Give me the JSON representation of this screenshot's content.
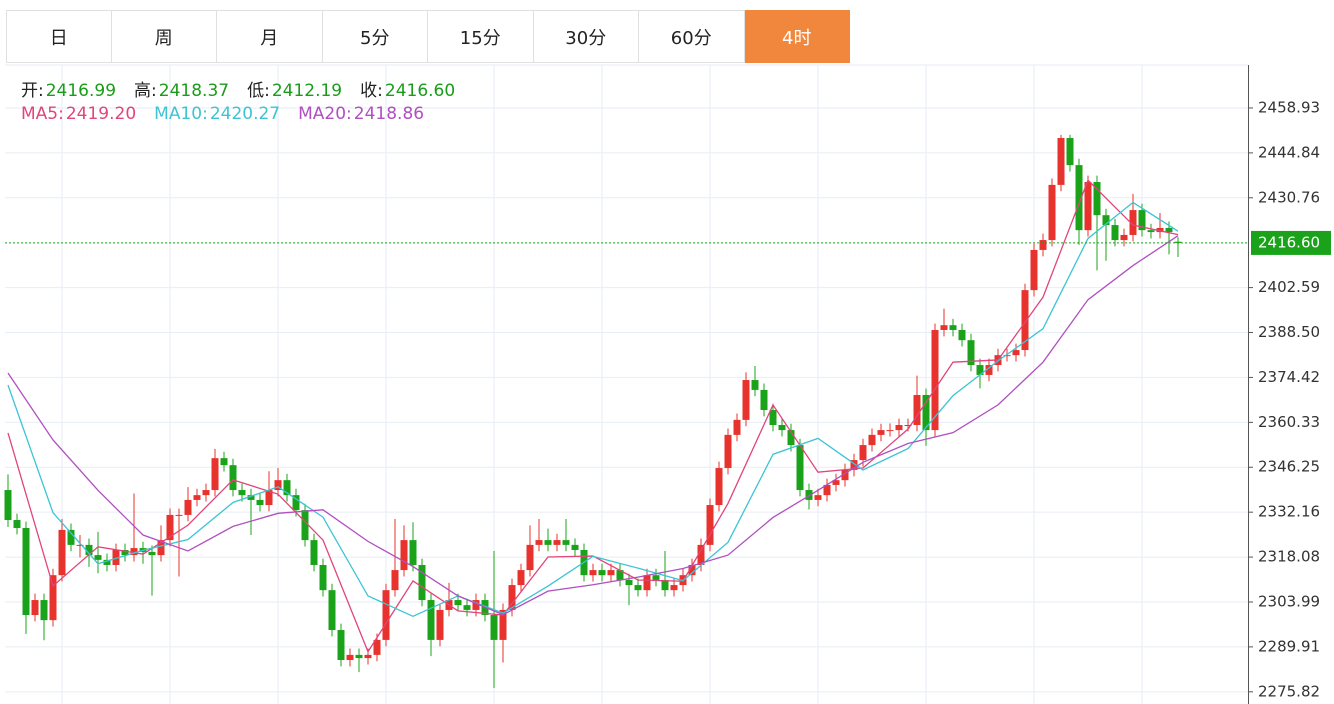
{
  "tabs": {
    "items": [
      "日",
      "周",
      "月",
      "5分",
      "15分",
      "30分",
      "60分",
      "4时"
    ],
    "active": 7
  },
  "quote": {
    "labels": [
      "开:",
      "高:",
      "低:",
      "收:"
    ],
    "values": [
      2416.99,
      2418.37,
      2412.19,
      2416.6
    ],
    "value_labels": [
      "2416.99",
      "2418.37",
      "2412.19",
      "2416.60"
    ],
    "color": "#1a9c1a"
  },
  "chart_data": {
    "type": "candlestick",
    "up_color": "#e8322d",
    "down_color": "#1aa31a",
    "grid": true,
    "ylim": [
      2272.0,
      2472.4
    ],
    "yticks": [
      2458.93,
      2444.84,
      2430.76,
      2402.59,
      {
        "value": 2388.5,
        "label": "2388.50"
      },
      2374.42,
      2360.33,
      2346.25,
      2332.16,
      2318.08,
      2303.99,
      2289.91,
      2275.82
    ],
    "last_price": {
      "value": 2416.6,
      "label": "2416.60",
      "color": "#1aa31a"
    },
    "open": [
      2339.1,
      2329.7,
      2327.2,
      2299.9,
      2304.6,
      2298.3,
      2312.4,
      2326.6,
      2321.9,
      2321.9,
      2318.7,
      2317.2,
      2315.6,
      2320.3,
      2318.7,
      2320.9,
      2319.7,
      2318.7,
      2323.4,
      2331.3,
      2331.3,
      2336.0,
      2337.5,
      2339.1,
      2349.1,
      2346.9,
      2339.1,
      2337.5,
      2336.0,
      2334.4,
      2339.1,
      2342.2,
      2337.5,
      2332.8,
      2323.4,
      2315.6,
      2307.7,
      2295.2,
      2285.8,
      2287.4,
      2286.4,
      2287.4,
      2292.1,
      2307.7,
      2314.0,
      2323.4,
      2315.6,
      2304.6,
      2292.1,
      2301.5,
      2304.6,
      2303.0,
      2301.5,
      2304.6,
      2299.9,
      2292.1,
      2301.5,
      2309.3,
      2314.0,
      2321.9,
      2323.4,
      2321.9,
      2323.4,
      2321.9,
      2320.3,
      2312.4,
      2314.0,
      2312.4,
      2314.0,
      2310.9,
      2309.3,
      2307.7,
      2312.4,
      2310.9,
      2307.7,
      2309.3,
      2312.4,
      2315.6,
      2321.9,
      2334.4,
      2346.0,
      2356.4,
      2361.1,
      2373.6,
      2370.5,
      2364.2,
      2359.5,
      2357.9,
      2353.2,
      2339.1,
      2336.0,
      2337.5,
      2340.7,
      2342.2,
      2345.4,
      2348.5,
      2353.2,
      2356.4,
      2357.9,
      2357.9,
      2359.5,
      2359.5,
      2368.9,
      2357.9,
      2389.3,
      2390.8,
      2389.3,
      2386.1,
      2378.3,
      2375.2,
      2378.3,
      2381.4,
      2381.4,
      2383.0,
      2401.8,
      2414.4,
      2417.5,
      2434.8,
      2449.5,
      2441.0,
      2420.6,
      2435.7,
      2425.3,
      2422.2,
      2417.5,
      2419.1,
      2426.9,
      2420.6,
      2420.0,
      2421.3,
      2416.99
    ],
    "high": [
      2344.0,
      2331.7,
      2329.2,
      2306.6,
      2306.6,
      2314.4,
      2330.0,
      2328.6,
      2325.0,
      2323.9,
      2326.0,
      2319.2,
      2322.3,
      2322.3,
      2338.0,
      2322.9,
      2321.7,
      2328.0,
      2333.3,
      2333.3,
      2340.0,
      2339.5,
      2341.1,
      2352.0,
      2351.1,
      2348.9,
      2341.1,
      2339.5,
      2338.0,
      2345.0,
      2346.0,
      2344.2,
      2339.5,
      2334.8,
      2325.4,
      2317.6,
      2309.7,
      2297.2,
      2289.4,
      2289.4,
      2289.4,
      2294.1,
      2309.7,
      2330.0,
      2328.0,
      2329.0,
      2317.6,
      2306.6,
      2303.5,
      2310.0,
      2306.6,
      2305.0,
      2306.6,
      2306.6,
      2320.0,
      2303.5,
      2311.3,
      2316.0,
      2328.0,
      2330.0,
      2327.0,
      2325.4,
      2330.0,
      2323.9,
      2322.3,
      2316.0,
      2316.0,
      2316.0,
      2316.0,
      2312.9,
      2311.3,
      2314.4,
      2314.4,
      2320.0,
      2311.3,
      2314.4,
      2317.6,
      2323.9,
      2336.4,
      2348.0,
      2358.4,
      2363.1,
      2376.0,
      2378.0,
      2372.5,
      2366.2,
      2361.5,
      2359.9,
      2355.2,
      2341.1,
      2339.5,
      2342.7,
      2344.2,
      2347.4,
      2350.5,
      2355.2,
      2358.4,
      2359.9,
      2360.0,
      2361.5,
      2361.5,
      2375.0,
      2370.9,
      2391.3,
      2396.0,
      2392.8,
      2391.3,
      2388.1,
      2380.3,
      2380.3,
      2383.4,
      2383.4,
      2385.0,
      2403.8,
      2416.4,
      2419.5,
      2436.8,
      2450.5,
      2450.5,
      2443.0,
      2437.7,
      2437.7,
      2427.3,
      2424.2,
      2421.1,
      2432.0,
      2428.9,
      2422.6,
      2426.0,
      2423.3,
      2418.37
    ],
    "low": [
      2327.5,
      2325.2,
      2294.0,
      2297.9,
      2292.0,
      2296.3,
      2310.4,
      2319.9,
      2318.0,
      2315.0,
      2313.0,
      2313.6,
      2313.6,
      2316.7,
      2316.7,
      2316.0,
      2306.0,
      2316.7,
      2321.4,
      2312.0,
      2329.3,
      2334.0,
      2335.5,
      2337.1,
      2344.9,
      2337.1,
      2335.5,
      2325.0,
      2332.4,
      2332.4,
      2337.1,
      2335.5,
      2330.8,
      2321.4,
      2313.6,
      2305.7,
      2293.2,
      2283.8,
      2283.8,
      2282.0,
      2284.4,
      2285.4,
      2290.1,
      2305.7,
      2312.0,
      2313.6,
      2302.6,
      2287.0,
      2290.1,
      2299.5,
      2301.0,
      2299.5,
      2299.5,
      2297.9,
      2277.0,
      2285.0,
      2299.5,
      2307.3,
      2312.0,
      2319.9,
      2319.9,
      2319.9,
      2319.9,
      2318.3,
      2310.4,
      2310.4,
      2310.4,
      2310.4,
      2308.9,
      2303.0,
      2305.7,
      2305.7,
      2308.9,
      2305.7,
      2305.7,
      2307.3,
      2310.4,
      2313.6,
      2319.9,
      2332.4,
      2344.0,
      2354.4,
      2359.1,
      2368.5,
      2362.2,
      2357.5,
      2355.9,
      2351.2,
      2337.1,
      2333.0,
      2334.0,
      2335.5,
      2338.7,
      2340.2,
      2343.4,
      2346.5,
      2351.2,
      2354.4,
      2355.9,
      2355.9,
      2357.5,
      2357.5,
      2353.0,
      2355.9,
      2387.3,
      2387.3,
      2384.1,
      2376.3,
      2371.0,
      2373.2,
      2376.3,
      2379.4,
      2379.4,
      2381.0,
      2399.8,
      2412.4,
      2415.5,
      2432.8,
      2439.0,
      2416.0,
      2418.6,
      2408.0,
      2411.0,
      2415.5,
      2415.5,
      2417.1,
      2418.6,
      2418.0,
      2418.0,
      2413.0,
      2412.19
    ],
    "close": [
      2329.7,
      2327.2,
      2299.9,
      2304.6,
      2298.3,
      2312.4,
      2326.6,
      2321.9,
      2321.9,
      2318.7,
      2317.2,
      2315.6,
      2320.3,
      2318.7,
      2320.9,
      2319.7,
      2318.7,
      2323.4,
      2331.3,
      2331.3,
      2336.0,
      2337.5,
      2339.1,
      2349.1,
      2346.9,
      2339.1,
      2337.5,
      2336.0,
      2334.4,
      2339.1,
      2342.2,
      2337.5,
      2332.8,
      2323.4,
      2315.6,
      2307.7,
      2295.2,
      2285.8,
      2287.4,
      2286.4,
      2287.4,
      2292.1,
      2307.7,
      2314.0,
      2323.4,
      2315.6,
      2304.6,
      2292.1,
      2301.5,
      2304.6,
      2303.0,
      2301.5,
      2304.6,
      2299.9,
      2292.1,
      2301.5,
      2309.3,
      2314.0,
      2321.9,
      2323.4,
      2321.9,
      2323.4,
      2321.9,
      2320.3,
      2312.4,
      2314.0,
      2312.4,
      2314.0,
      2310.9,
      2309.3,
      2307.7,
      2312.4,
      2310.9,
      2307.7,
      2309.3,
      2312.4,
      2315.6,
      2321.9,
      2334.4,
      2346.0,
      2356.4,
      2361.1,
      2373.6,
      2370.5,
      2364.2,
      2359.5,
      2357.9,
      2353.2,
      2339.1,
      2336.0,
      2337.5,
      2340.7,
      2342.2,
      2345.4,
      2348.5,
      2353.2,
      2356.4,
      2357.9,
      2357.9,
      2359.5,
      2359.5,
      2368.9,
      2357.9,
      2389.3,
      2390.8,
      2389.3,
      2386.1,
      2378.3,
      2375.2,
      2378.3,
      2381.4,
      2381.4,
      2383.0,
      2401.8,
      2414.4,
      2417.5,
      2434.8,
      2449.5,
      2441.0,
      2420.6,
      2435.7,
      2425.3,
      2422.2,
      2417.5,
      2419.1,
      2426.9,
      2420.6,
      2420.0,
      2421.3,
      2420.0,
      2416.6
    ],
    "ma_x": [
      0,
      5,
      10,
      15,
      20,
      25,
      30,
      35,
      40,
      45,
      50,
      55,
      60,
      65,
      70,
      75,
      80,
      85,
      90,
      95,
      100,
      105,
      110,
      115,
      120,
      125,
      130
    ],
    "series": [
      {
        "name": "MA5:",
        "color": "#e0457b",
        "last": 2419.2,
        "last_label": "2419.20",
        "values": [
          2357.0,
          2309.0,
          2321.3,
          2319.0,
          2328.1,
          2342.3,
          2337.8,
          2323.4,
          2288.4,
          2310.6,
          2301.2,
          2299.9,
          2318.1,
          2318.4,
          2310.9,
          2310.5,
          2334.9,
          2365.8,
          2344.7,
          2346.0,
          2358.2,
          2379.2,
          2379.9,
          2399.6,
          2436.3,
          2422.2,
          2419.2
        ]
      },
      {
        "name": "MA10:",
        "color": "#3cc4d4",
        "last": 2420.27,
        "last_label": "2420.27",
        "values": [
          2372.0,
          2332.0,
          2316.0,
          2320.2,
          2323.6,
          2335.2,
          2340.1,
          2330.6,
          2305.9,
          2299.5,
          2305.9,
          2300.5,
          2309.0,
          2318.3,
          2314.6,
          2310.7,
          2322.7,
          2350.3,
          2355.3,
          2345.4,
          2352.1,
          2368.7,
          2379.6,
          2389.7,
          2418.0,
          2429.3,
          2420.27
        ]
      },
      {
        "name": "MA20:",
        "color": "#b04fc0",
        "last": 2418.86,
        "last_label": "2418.86",
        "values": [
          2375.8,
          2354.8,
          2339.0,
          2325.0,
          2320.0,
          2327.7,
          2331.8,
          2332.9,
          2323.0,
          2315.1,
          2305.9,
          2300.0,
          2307.4,
          2309.4,
          2311.8,
          2314.5,
          2318.7,
          2330.5,
          2339.0,
          2347.8,
          2353.7,
          2357.1,
          2365.8,
          2379.2,
          2398.8,
          2409.5,
          2418.86
        ]
      }
    ]
  }
}
